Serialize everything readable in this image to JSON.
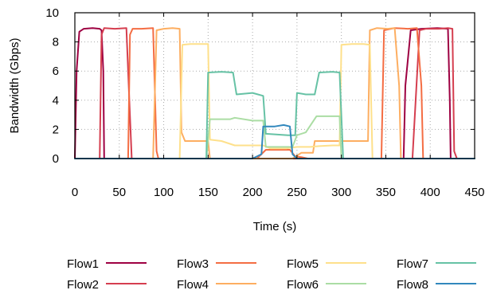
{
  "chart_data": {
    "type": "line",
    "title": "",
    "xlabel": "Time (s)",
    "ylabel": "Bandwidth (Gbps)",
    "xlim": [
      0,
      450
    ],
    "ylim": [
      0,
      10
    ],
    "xticks": [
      0,
      50,
      100,
      150,
      200,
      250,
      300,
      350,
      400,
      450
    ],
    "yticks": [
      0,
      2,
      4,
      6,
      8,
      10
    ],
    "grid": true,
    "legend_position": "bottom",
    "series": [
      {
        "name": "Flow1",
        "color": "#9e0142",
        "points": [
          [
            0,
            0
          ],
          [
            2,
            6
          ],
          [
            5,
            8.7
          ],
          [
            10,
            8.9
          ],
          [
            20,
            8.95
          ],
          [
            28,
            8.9
          ],
          [
            30,
            8.8
          ],
          [
            32,
            6
          ],
          [
            33,
            0
          ],
          [
            370,
            0
          ],
          [
            372,
            5
          ],
          [
            378,
            8.8
          ],
          [
            390,
            8.9
          ],
          [
            408,
            8.95
          ],
          [
            420,
            8.9
          ],
          [
            422,
            4
          ],
          [
            423,
            0
          ],
          [
            450,
            0
          ]
        ]
      },
      {
        "name": "Flow2",
        "color": "#d53e4f",
        "points": [
          [
            0,
            0
          ],
          [
            28,
            0
          ],
          [
            30,
            8.5
          ],
          [
            33,
            8.95
          ],
          [
            45,
            8.9
          ],
          [
            58,
            8.95
          ],
          [
            61,
            4.5
          ],
          [
            64,
            0
          ],
          [
            380,
            0
          ],
          [
            388,
            8.8
          ],
          [
            395,
            8.9
          ],
          [
            410,
            8.9
          ],
          [
            420,
            8.95
          ],
          [
            425,
            8.9
          ],
          [
            427,
            0.5
          ],
          [
            430,
            0
          ],
          [
            450,
            0
          ]
        ]
      },
      {
        "name": "Flow3",
        "color": "#f46d43",
        "points": [
          [
            0,
            0
          ],
          [
            60,
            0
          ],
          [
            62,
            8.5
          ],
          [
            65,
            8.9
          ],
          [
            75,
            8.9
          ],
          [
            88,
            8.95
          ],
          [
            92,
            0.5
          ],
          [
            94,
            0
          ],
          [
            205,
            0
          ],
          [
            215,
            0.6
          ],
          [
            230,
            0.6
          ],
          [
            242,
            0.6
          ],
          [
            248,
            0.15
          ],
          [
            255,
            0.1
          ],
          [
            262,
            0
          ],
          [
            345,
            0
          ],
          [
            348,
            8.8
          ],
          [
            360,
            8.95
          ],
          [
            375,
            8.9
          ],
          [
            385,
            8.95
          ],
          [
            390,
            5
          ],
          [
            392,
            0
          ],
          [
            450,
            0
          ]
        ]
      },
      {
        "name": "Flow4",
        "color": "#fdae61",
        "points": [
          [
            0,
            0
          ],
          [
            88,
            0
          ],
          [
            92,
            8.8
          ],
          [
            100,
            8.9
          ],
          [
            110,
            8.95
          ],
          [
            118,
            8.9
          ],
          [
            120,
            1.8
          ],
          [
            124,
            1.2
          ],
          [
            140,
            1.2
          ],
          [
            150,
            1.2
          ],
          [
            152,
            0
          ],
          [
            245,
            0
          ],
          [
            255,
            0.4
          ],
          [
            268,
            0.4
          ],
          [
            270,
            1.2
          ],
          [
            285,
            1.2
          ],
          [
            298,
            1.2
          ],
          [
            302,
            1.2
          ],
          [
            310,
            1.2
          ],
          [
            330,
            1.2
          ],
          [
            332,
            8.8
          ],
          [
            340,
            8.95
          ],
          [
            352,
            8.9
          ],
          [
            360,
            8.95
          ],
          [
            365,
            5
          ],
          [
            367,
            0
          ],
          [
            450,
            0
          ]
        ]
      },
      {
        "name": "Flow5",
        "color": "#fee08b",
        "points": [
          [
            0,
            0
          ],
          [
            118,
            0
          ],
          [
            121,
            7.8
          ],
          [
            130,
            7.85
          ],
          [
            140,
            7.85
          ],
          [
            150,
            7.85
          ],
          [
            152,
            1.3
          ],
          [
            165,
            1.2
          ],
          [
            180,
            0.9
          ],
          [
            200,
            0.9
          ],
          [
            212,
            0.9
          ],
          [
            220,
            0.7
          ],
          [
            238,
            0.7
          ],
          [
            250,
            0.8
          ],
          [
            265,
            0.8
          ],
          [
            275,
            0.85
          ],
          [
            290,
            0.9
          ],
          [
            298,
            0.9
          ],
          [
            300,
            7.8
          ],
          [
            312,
            7.85
          ],
          [
            325,
            7.85
          ],
          [
            332,
            7.8
          ],
          [
            335,
            0
          ],
          [
            450,
            0
          ]
        ]
      },
      {
        "name": "Flow6",
        "color": "#abdda4",
        "points": [
          [
            0,
            0
          ],
          [
            148,
            0
          ],
          [
            152,
            2.7
          ],
          [
            165,
            2.7
          ],
          [
            175,
            2.7
          ],
          [
            180,
            2.8
          ],
          [
            200,
            2.6
          ],
          [
            212,
            2.6
          ],
          [
            215,
            0.8
          ],
          [
            240,
            0.8
          ],
          [
            245,
            0.8
          ],
          [
            250,
            1.6
          ],
          [
            260,
            1.8
          ],
          [
            272,
            2.9
          ],
          [
            290,
            2.9
          ],
          [
            298,
            2.9
          ],
          [
            300,
            0
          ],
          [
            450,
            0
          ]
        ]
      },
      {
        "name": "Flow7",
        "color": "#66c2a5",
        "points": [
          [
            0,
            0
          ],
          [
            148,
            0
          ],
          [
            150,
            5.9
          ],
          [
            165,
            5.95
          ],
          [
            178,
            5.9
          ],
          [
            182,
            4.4
          ],
          [
            200,
            4.5
          ],
          [
            212,
            4.3
          ],
          [
            215,
            1.7
          ],
          [
            240,
            1.6
          ],
          [
            248,
            1.6
          ],
          [
            250,
            4.5
          ],
          [
            260,
            4.4
          ],
          [
            270,
            4.4
          ],
          [
            275,
            5.9
          ],
          [
            290,
            5.95
          ],
          [
            298,
            5.9
          ],
          [
            302,
            0
          ],
          [
            450,
            0
          ]
        ]
      },
      {
        "name": "Flow8",
        "color": "#3288bd",
        "points": [
          [
            0,
            0
          ],
          [
            200,
            0
          ],
          [
            210,
            0.3
          ],
          [
            212,
            2.2
          ],
          [
            225,
            2.2
          ],
          [
            235,
            2.3
          ],
          [
            242,
            2.2
          ],
          [
            245,
            0.3
          ],
          [
            250,
            0
          ],
          [
            450,
            0
          ]
        ]
      }
    ]
  }
}
